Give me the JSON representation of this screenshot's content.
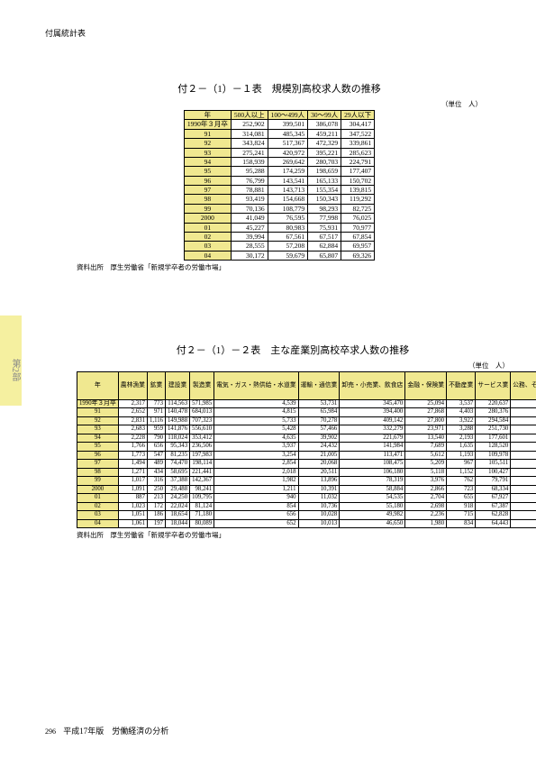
{
  "header": "付属統計表",
  "side_tab": "第2部",
  "footer": {
    "page": "296",
    "text": "平成17年版　労働経済の分析"
  },
  "table1": {
    "title": "付２－（1）－１表　規模別高校求人数の推移",
    "unit": "（単位　人）",
    "columns": [
      "年",
      "500人以上",
      "100～499人",
      "30～99人",
      "29人以下"
    ],
    "rows": [
      [
        "1990年３月卒",
        "252,902",
        "399,501",
        "386,078",
        "304,417"
      ],
      [
        "91",
        "314,081",
        "485,345",
        "459,211",
        "347,522"
      ],
      [
        "92",
        "343,824",
        "517,367",
        "472,329",
        "339,861"
      ],
      [
        "93",
        "275,241",
        "420,972",
        "395,221",
        "285,623"
      ],
      [
        "94",
        "158,939",
        "269,642",
        "280,703",
        "224,791"
      ],
      [
        "95",
        "95,288",
        "174,259",
        "198,659",
        "177,407"
      ],
      [
        "96",
        "76,799",
        "143,541",
        "165,133",
        "150,702"
      ],
      [
        "97",
        "78,881",
        "143,713",
        "155,354",
        "139,815"
      ],
      [
        "98",
        "93,419",
        "154,668",
        "150,343",
        "119,292"
      ],
      [
        "99",
        "70,136",
        "108,779",
        "98,293",
        "82,725"
      ],
      [
        "2000",
        "41,049",
        "76,595",
        "77,998",
        "76,025"
      ],
      [
        "01",
        "45,227",
        "80,983",
        "75,931",
        "70,977"
      ],
      [
        "02",
        "39,994",
        "67,561",
        "67,517",
        "67,854"
      ],
      [
        "03",
        "28,555",
        "57,208",
        "62,884",
        "69,957"
      ],
      [
        "04",
        "30,172",
        "59,679",
        "65,807",
        "69,326"
      ]
    ],
    "source": "資料出所　厚生労働省「新規学卒者の労働市場」"
  },
  "table2": {
    "title": "付２－（1）－２表　主な産業別高校卒求人数の推移",
    "unit": "（単位　人）",
    "columns": [
      "年",
      "農林漁業",
      "鉱業",
      "建設業",
      "製造業",
      "電気・ガス・熱供給・水道業",
      "運輸・通信業",
      "卸売・小売業、飲食店",
      "金融・保険業",
      "不動産業",
      "サービス業",
      "公務、その他"
    ],
    "rows": [
      [
        "1990年３月卒",
        "2,317",
        "773",
        "114,563",
        "571,985",
        "4,539",
        "53,731",
        "345,470",
        "25,094",
        "3,537",
        "220,637",
        "252"
      ],
      [
        "91",
        "2,652",
        "971",
        "140,478",
        "684,013",
        "4,815",
        "65,984",
        "394,400",
        "27,868",
        "4,403",
        "280,376",
        "199"
      ],
      [
        "92",
        "2,831",
        "1,116",
        "149,988",
        "707,323",
        "5,733",
        "70,278",
        "409,142",
        "27,800",
        "3,922",
        "294,584",
        "653"
      ],
      [
        "93",
        "2,683",
        "959",
        "141,876",
        "556,610",
        "5,428",
        "57,466",
        "332,279",
        "23,971",
        "3,288",
        "251,730",
        "367"
      ],
      [
        "94",
        "2,228",
        "790",
        "118,024",
        "353,412",
        "4,635",
        "39,902",
        "221,679",
        "13,540",
        "2,193",
        "177,601",
        "71"
      ],
      [
        "95",
        "1,766",
        "656",
        "95,343",
        "236,506",
        "3,937",
        "24,432",
        "141,984",
        "7,689",
        "1,635",
        "128,520",
        "145"
      ],
      [
        "96",
        "1,773",
        "547",
        "81,235",
        "197,983",
        "3,254",
        "21,005",
        "113,471",
        "5,612",
        "1,193",
        "109,978",
        "124"
      ],
      [
        "97",
        "1,494",
        "489",
        "74,470",
        "198,114",
        "2,854",
        "20,068",
        "108,475",
        "5,209",
        "967",
        "105,511",
        "112"
      ],
      [
        "98",
        "1,271",
        "434",
        "58,695",
        "221,441",
        "2,018",
        "20,511",
        "106,180",
        "5,118",
        "1,152",
        "100,427",
        "105"
      ],
      [
        "99",
        "1,017",
        "316",
        "37,388",
        "142,367",
        "1,982",
        "13,896",
        "78,319",
        "3,976",
        "762",
        "79,791",
        "124"
      ],
      [
        "2000",
        "1,091",
        "250",
        "29,488",
        "98,241",
        "1,211",
        "10,391",
        "58,884",
        "2,866",
        "723",
        "68,334",
        "188"
      ],
      [
        "01",
        "887",
        "213",
        "24,250",
        "109,795",
        "940",
        "11,032",
        "54,535",
        "2,704",
        "655",
        "67,927",
        "180"
      ],
      [
        "02",
        "1,023",
        "172",
        "22,024",
        "81,124",
        "854",
        "10,736",
        "55,180",
        "2,698",
        "918",
        "67,387",
        "981"
      ],
      [
        "03",
        "1,051",
        "186",
        "18,654",
        "71,180",
        "656",
        "10,028",
        "49,982",
        "2,236",
        "715",
        "62,828",
        "1,088"
      ],
      [
        "04",
        "1,061",
        "197",
        "18,044",
        "80,089",
        "652",
        "10,013",
        "46,650",
        "1,980",
        "834",
        "64,443",
        "1,021"
      ]
    ],
    "source": "資料出所　厚生労働省「新規学卒者の労働市場」"
  }
}
